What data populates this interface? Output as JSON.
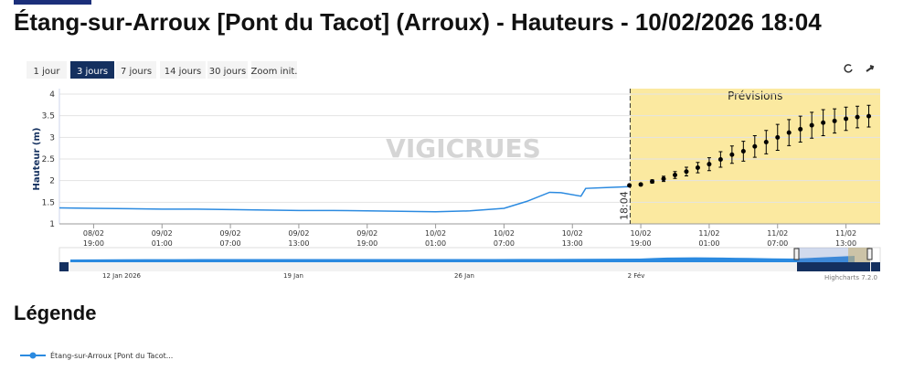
{
  "title": "Étang-sur-Arroux [Pont du Tacot] (Arroux) - Hauteurs - 10/02/2026 18:04",
  "range_buttons": [
    "1 jour",
    "3 jours",
    "7 jours",
    "14 jours",
    "30 jours",
    "Zoom init."
  ],
  "selected_button": 1,
  "legend_heading": "Légende",
  "chart_data": {
    "type": "line",
    "y_label": "Hauteur (m)",
    "watermark": "VIGICRUES",
    "ylim": [
      1,
      4
    ],
    "yticks": [
      1,
      1.5,
      2,
      2.5,
      3,
      3.5,
      4
    ],
    "grid": true,
    "xlim": [
      "2026-02-08T16:00",
      "2026-02-11T16:00"
    ],
    "xticks": [
      {
        "value": "2026-02-08T19:00",
        "label": "08/02 19:00"
      },
      {
        "value": "2026-02-09T01:00",
        "label": "09/02 01:00"
      },
      {
        "value": "2026-02-09T07:00",
        "label": "09/02 07:00"
      },
      {
        "value": "2026-02-09T13:00",
        "label": "09/02 13:00"
      },
      {
        "value": "2026-02-09T19:00",
        "label": "09/02 19:00"
      },
      {
        "value": "2026-02-10T01:00",
        "label": "10/02 01:00"
      },
      {
        "value": "2026-02-10T07:00",
        "label": "10/02 07:00"
      },
      {
        "value": "2026-02-10T13:00",
        "label": "10/02 13:00"
      },
      {
        "value": "2026-02-10T19:00",
        "label": "10/02 19:00"
      },
      {
        "value": "2026-02-11T01:00",
        "label": "11/02 01:00"
      },
      {
        "value": "2026-02-11T07:00",
        "label": "11/02 07:00"
      },
      {
        "value": "2026-02-11T13:00",
        "label": "11/02 13:00"
      }
    ],
    "now": {
      "x": "2026-02-10T18:04",
      "label": "18:04"
    },
    "forecast_band": {
      "label": "Prévisions",
      "color": "#fbe9a0"
    },
    "series": [
      {
        "name": "Étang-sur-Arroux [Pont du Tacot...",
        "color": "#2b8ae0",
        "type": "line",
        "x": [
          "2026-02-08T16:00",
          "2026-02-08T19:00",
          "2026-02-08T22:00",
          "2026-02-09T01:00",
          "2026-02-09T04:00",
          "2026-02-09T07:00",
          "2026-02-09T10:00",
          "2026-02-09T13:00",
          "2026-02-09T16:00",
          "2026-02-09T19:00",
          "2026-02-09T22:00",
          "2026-02-10T01:00",
          "2026-02-10T04:00",
          "2026-02-10T07:00",
          "2026-02-10T09:00",
          "2026-02-10T11:00",
          "2026-02-10T12:00",
          "2026-02-10T13:45",
          "2026-02-10T14:10",
          "2026-02-10T16:00",
          "2026-02-10T18:00"
        ],
        "values": [
          1.37,
          1.36,
          1.35,
          1.34,
          1.34,
          1.33,
          1.32,
          1.31,
          1.31,
          1.3,
          1.29,
          1.28,
          1.3,
          1.36,
          1.52,
          1.73,
          1.72,
          1.64,
          1.82,
          1.84,
          1.86
        ]
      },
      {
        "color": "#000000",
        "type": "errorbar",
        "x": [
          "2026-02-10T18:00",
          "2026-02-10T19:00",
          "2026-02-10T20:00",
          "2026-02-10T21:00",
          "2026-02-10T22:00",
          "2026-02-10T23:00",
          "2026-02-11T00:00",
          "2026-02-11T01:00",
          "2026-02-11T02:00",
          "2026-02-11T03:00",
          "2026-02-11T04:00",
          "2026-02-11T05:00",
          "2026-02-11T06:00",
          "2026-02-11T07:00",
          "2026-02-11T08:00",
          "2026-02-11T09:00",
          "2026-02-11T10:00",
          "2026-02-11T11:00",
          "2026-02-11T12:00",
          "2026-02-11T13:00",
          "2026-02-11T14:00",
          "2026-02-11T15:00"
        ],
        "values": [
          1.89,
          1.91,
          1.98,
          2.04,
          2.13,
          2.21,
          2.3,
          2.38,
          2.49,
          2.6,
          2.68,
          2.79,
          2.89,
          3.0,
          3.11,
          3.19,
          3.28,
          3.34,
          3.38,
          3.43,
          3.47,
          3.49
        ],
        "low": [
          1.89,
          1.89,
          1.94,
          1.98,
          2.05,
          2.11,
          2.18,
          2.23,
          2.31,
          2.4,
          2.45,
          2.54,
          2.62,
          2.7,
          2.81,
          2.89,
          2.98,
          3.04,
          3.1,
          3.16,
          3.22,
          3.24
        ],
        "high": [
          1.89,
          1.93,
          2.02,
          2.1,
          2.21,
          2.31,
          2.42,
          2.53,
          2.67,
          2.8,
          2.91,
          3.04,
          3.16,
          3.3,
          3.41,
          3.49,
          3.58,
          3.64,
          3.66,
          3.7,
          3.72,
          3.74
        ]
      }
    ],
    "navigator_labels": [
      "12 Jan 2026",
      "19 Jan",
      "26 Jan",
      "2 Fév"
    ],
    "credits": "Highcharts 7.2.0"
  }
}
